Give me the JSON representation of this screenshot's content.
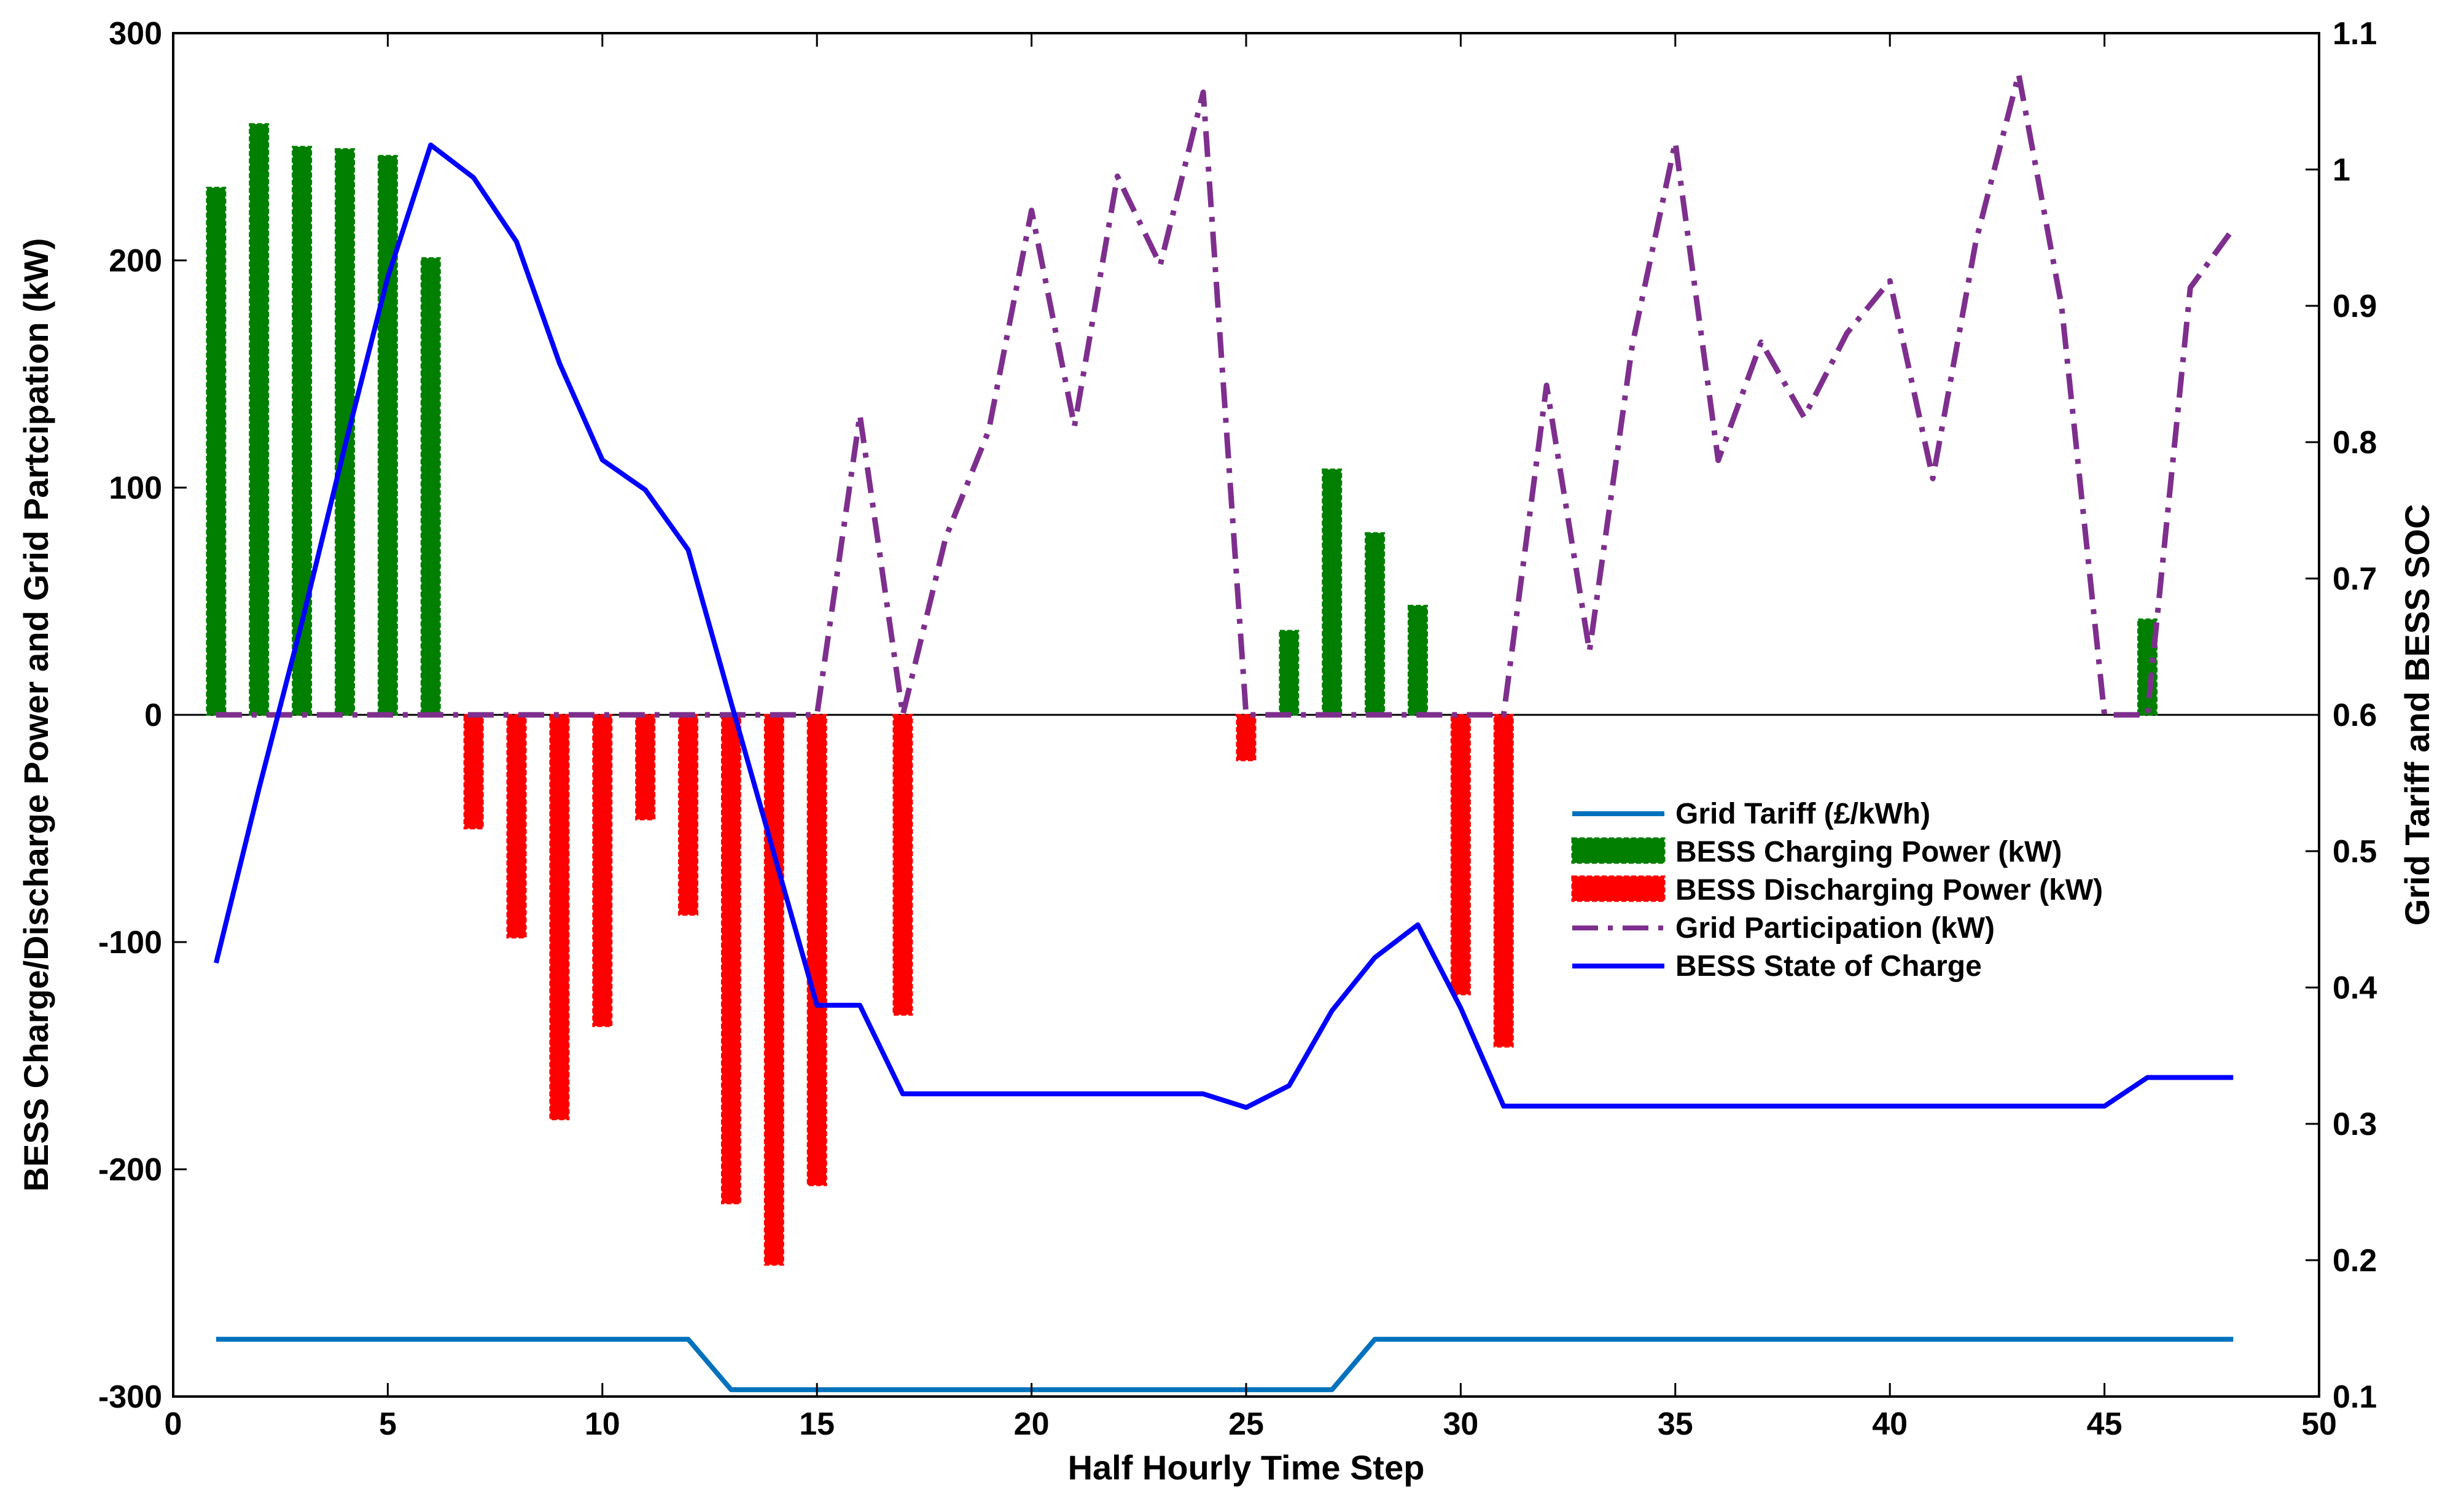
{
  "chart_data": {
    "type": "bar",
    "xlabel": "Half Hourly Time Step",
    "ylabel_left": "BESS Charge/Discharge Power and Grid Partcipation (kW)",
    "ylabel_right": "Grid Tariff and BESS SOC",
    "xlim": [
      0,
      50
    ],
    "ylim_left": [
      -300,
      300
    ],
    "ylim_right": [
      0.1,
      1.1
    ],
    "x_ticks": [
      0,
      5,
      10,
      15,
      20,
      25,
      30,
      35,
      40,
      45,
      50
    ],
    "x_tick_labels": [
      "0",
      "5",
      "10",
      "15",
      "20",
      "25",
      "30",
      "35",
      "40",
      "45",
      "50"
    ],
    "y_left_ticks": [
      -300,
      -200,
      -100,
      0,
      100,
      200,
      300
    ],
    "y_left_tick_labels": [
      "-300",
      "-200",
      "-100",
      "0",
      "100",
      "200",
      "300"
    ],
    "y_right_ticks": [
      0.1,
      0.2,
      0.3,
      0.4,
      0.5,
      0.6,
      0.7,
      0.8,
      0.9,
      1.0,
      1.1
    ],
    "y_right_tick_labels": [
      "0.1",
      "0.2",
      "0.3",
      "0.4",
      "0.5",
      "0.6",
      "0.7",
      "0.8",
      "0.9",
      "1",
      "1.1"
    ],
    "grid": false,
    "legend_position": "center-right",
    "legend": [
      {
        "label": "Grid  Tariff (£/kWh)",
        "color": "#0072BD",
        "style": "line"
      },
      {
        "label": "BESS Charging Power (kW)",
        "color": "#007F00",
        "style": "bar"
      },
      {
        "label": "BESS Discharging Power (kW)",
        "color": "#FF0000",
        "style": "bar"
      },
      {
        "label": "Grid Participation (kW)",
        "color": "#7E2F8E",
        "style": "dashdot"
      },
      {
        "label": "BESS State of Charge",
        "color": "#0000FF",
        "style": "line"
      }
    ],
    "series": [
      {
        "name": "BESS Charging Power (kW)",
        "axis": "left",
        "type": "bar",
        "color": "#007F00",
        "x": [
          1,
          2,
          3,
          4,
          5,
          6,
          26,
          27,
          28,
          29,
          46
        ],
        "values": [
          232,
          260,
          250,
          249,
          246,
          201,
          37,
          108,
          80,
          48,
          42
        ]
      },
      {
        "name": "BESS Discharging Power (kW)",
        "axis": "left",
        "type": "bar",
        "color": "#FF0000",
        "x": [
          7,
          8,
          9,
          10,
          11,
          12,
          13,
          14,
          15,
          17,
          25,
          30,
          31
        ],
        "values": [
          -50,
          -98,
          -178,
          -137,
          -46,
          -88,
          -215,
          -242,
          -207,
          -132,
          -20,
          -123,
          -146
        ]
      },
      {
        "name": "Grid Participation (kW)",
        "axis": "left",
        "type": "line",
        "color": "#7E2F8E",
        "x": [
          1,
          2,
          3,
          4,
          5,
          6,
          7,
          8,
          9,
          10,
          11,
          12,
          13,
          14,
          15,
          16,
          17,
          18,
          19,
          20,
          21,
          22,
          23,
          24,
          25,
          26,
          27,
          28,
          29,
          30,
          31,
          32,
          33,
          34,
          35,
          36,
          37,
          38,
          39,
          40,
          41,
          42,
          43,
          44,
          45,
          46,
          47,
          48
        ],
        "values": [
          0,
          0,
          0,
          0,
          0,
          0,
          0,
          0,
          0,
          0,
          0,
          0,
          0,
          0,
          0,
          132,
          0,
          78,
          125,
          222,
          127,
          237,
          198,
          274,
          0,
          0,
          0,
          0,
          0,
          0,
          0,
          145,
          28,
          163,
          252,
          112,
          164,
          131,
          168,
          191,
          104,
          208,
          282,
          180,
          0,
          0,
          188,
          214
        ]
      },
      {
        "name": "BESS State of Charge",
        "axis": "right",
        "type": "line",
        "color": "#0000FF",
        "x": [
          1,
          2,
          3,
          4,
          5,
          6,
          7,
          8,
          9,
          10,
          11,
          12,
          13,
          14,
          15,
          16,
          17,
          18,
          19,
          20,
          21,
          22,
          23,
          24,
          25,
          26,
          27,
          28,
          29,
          30,
          31,
          32,
          33,
          34,
          35,
          36,
          37,
          38,
          39,
          40,
          41,
          42,
          43,
          44,
          45,
          46,
          47,
          48
        ],
        "values": [
          0.418,
          0.546,
          0.668,
          0.797,
          0.921,
          1.018,
          0.994,
          0.947,
          0.858,
          0.787,
          0.765,
          0.721,
          0.609,
          0.498,
          0.387,
          0.387,
          0.322,
          0.322,
          0.322,
          0.322,
          0.322,
          0.322,
          0.322,
          0.322,
          0.312,
          0.328,
          0.383,
          0.422,
          0.446,
          0.385,
          0.313,
          0.313,
          0.313,
          0.313,
          0.313,
          0.313,
          0.313,
          0.313,
          0.313,
          0.313,
          0.313,
          0.313,
          0.313,
          0.313,
          0.313,
          0.334,
          0.334,
          0.334
        ]
      },
      {
        "name": "Grid  Tariff (£/kWh)",
        "axis": "right",
        "type": "line",
        "color": "#0072BD",
        "x": [
          1,
          2,
          3,
          4,
          5,
          6,
          7,
          8,
          9,
          10,
          11,
          12,
          13,
          14,
          15,
          16,
          17,
          18,
          19,
          20,
          21,
          22,
          23,
          24,
          25,
          26,
          27,
          28,
          29,
          30,
          31,
          32,
          33,
          34,
          35,
          36,
          37,
          38,
          39,
          40,
          41,
          42,
          43,
          44,
          45,
          46,
          47,
          48
        ],
        "values": [
          0.142,
          0.142,
          0.142,
          0.142,
          0.142,
          0.142,
          0.142,
          0.142,
          0.142,
          0.142,
          0.142,
          0.142,
          0.105,
          0.105,
          0.105,
          0.105,
          0.105,
          0.105,
          0.105,
          0.105,
          0.105,
          0.105,
          0.105,
          0.105,
          0.105,
          0.105,
          0.105,
          0.142,
          0.142,
          0.142,
          0.142,
          0.142,
          0.142,
          0.142,
          0.142,
          0.142,
          0.142,
          0.142,
          0.142,
          0.142,
          0.142,
          0.142,
          0.142,
          0.142,
          0.142,
          0.142,
          0.142,
          0.142
        ]
      }
    ]
  }
}
